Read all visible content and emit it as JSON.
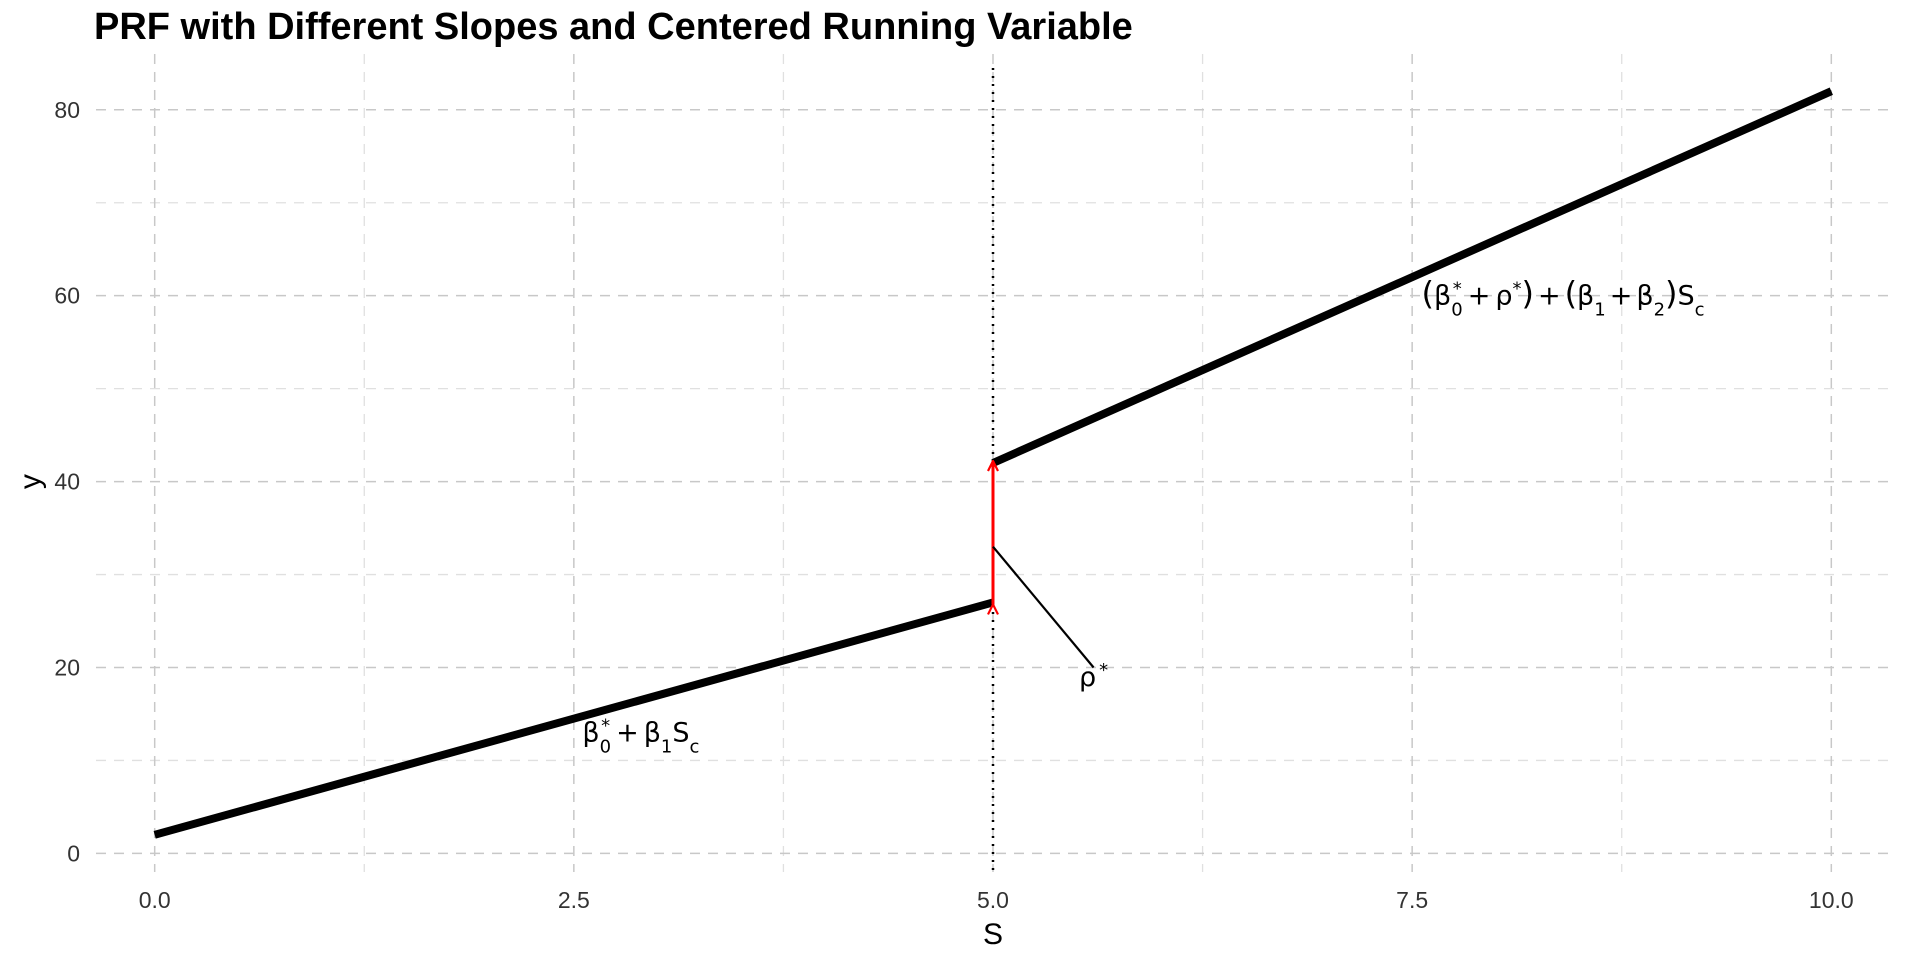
{
  "chart_data": {
    "type": "line",
    "title": "PRF with Different Slopes and Centered Running Variable",
    "xlabel": "S",
    "ylabel": "y",
    "xlim": [
      -0.35,
      10.35
    ],
    "ylim": [
      -2,
      86
    ],
    "xticks": [
      0,
      2.5,
      5,
      7.5,
      10
    ],
    "xtick_labels": [
      "0.0",
      "2.5",
      "5.0",
      "7.5",
      "10.0"
    ],
    "yticks": [
      0,
      20,
      40,
      60,
      80
    ],
    "ytick_labels": [
      "0",
      "20",
      "40",
      "60",
      "80"
    ],
    "x_minor": [
      1.25,
      3.75,
      6.25,
      8.75
    ],
    "y_minor": [
      10,
      30,
      50,
      70
    ],
    "grid": true,
    "series": [
      {
        "x": [
          0,
          5
        ],
        "y": [
          2,
          27
        ]
      },
      {
        "x": [
          5,
          10
        ],
        "y": [
          42,
          82
        ]
      }
    ],
    "cutoff": 5,
    "jump": {
      "x": 5,
      "from": 27,
      "to": 42
    },
    "annotations": [
      {
        "id": "left",
        "label": "β0* + β1Sc",
        "x": 2.9,
        "y": 13
      },
      {
        "id": "right",
        "label": "(β0* + ρ*) + (β1 + β2)Sc",
        "x": 8.4,
        "y": 60
      },
      {
        "id": "rho",
        "label": "ρ*",
        "x": 5.6,
        "y": 19,
        "pointer_from": [
          5,
          33
        ],
        "pointer_to": [
          5.6,
          20
        ]
      }
    ],
    "colors": {
      "line": "#000000",
      "arrow": "#ff0000",
      "grid": "#c8c8c8"
    }
  }
}
